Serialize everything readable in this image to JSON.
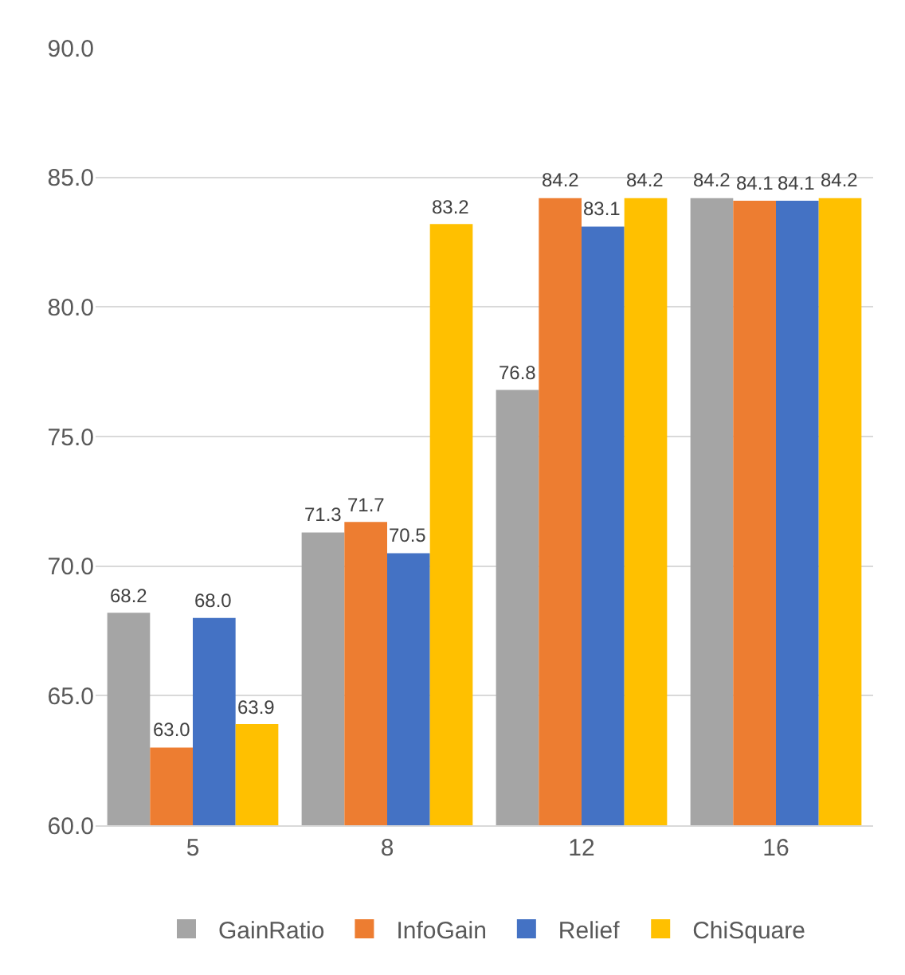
{
  "chart_data": {
    "type": "bar",
    "categories": [
      "5",
      "8",
      "12",
      "16"
    ],
    "series": [
      {
        "name": "GainRatio",
        "color": "#a5a5a5",
        "values": [
          68.2,
          71.3,
          76.8,
          84.2
        ],
        "value_labels": [
          "68.2",
          "71.3",
          "76.8",
          "84.2"
        ]
      },
      {
        "name": "InfoGain",
        "color": "#ed7d31",
        "values": [
          63.0,
          71.7,
          84.2,
          84.1
        ],
        "value_labels": [
          "63.0",
          "71.7",
          "84.2",
          "84.1"
        ]
      },
      {
        "name": "Relief",
        "color": "#4472c4",
        "values": [
          68.0,
          70.5,
          83.1,
          84.1
        ],
        "value_labels": [
          "68.0",
          "70.5",
          "83.1",
          "84.1"
        ]
      },
      {
        "name": "ChiSquare",
        "color": "#ffc000",
        "values": [
          63.9,
          83.2,
          84.2,
          84.2
        ],
        "value_labels": [
          "63.9",
          "83.2",
          "84.2",
          "84.2"
        ]
      }
    ],
    "ylim": [
      60,
      90
    ],
    "yticks": [
      {
        "value": 60,
        "label": "60.0"
      },
      {
        "value": 65,
        "label": "65.0"
      },
      {
        "value": 70,
        "label": "70.0"
      },
      {
        "value": 75,
        "label": "75.0"
      },
      {
        "value": 80,
        "label": "80.0"
      },
      {
        "value": 85,
        "label": "85.0"
      },
      {
        "value": 90,
        "label": "90.0"
      }
    ],
    "grid": "y",
    "legend": "bottom"
  }
}
